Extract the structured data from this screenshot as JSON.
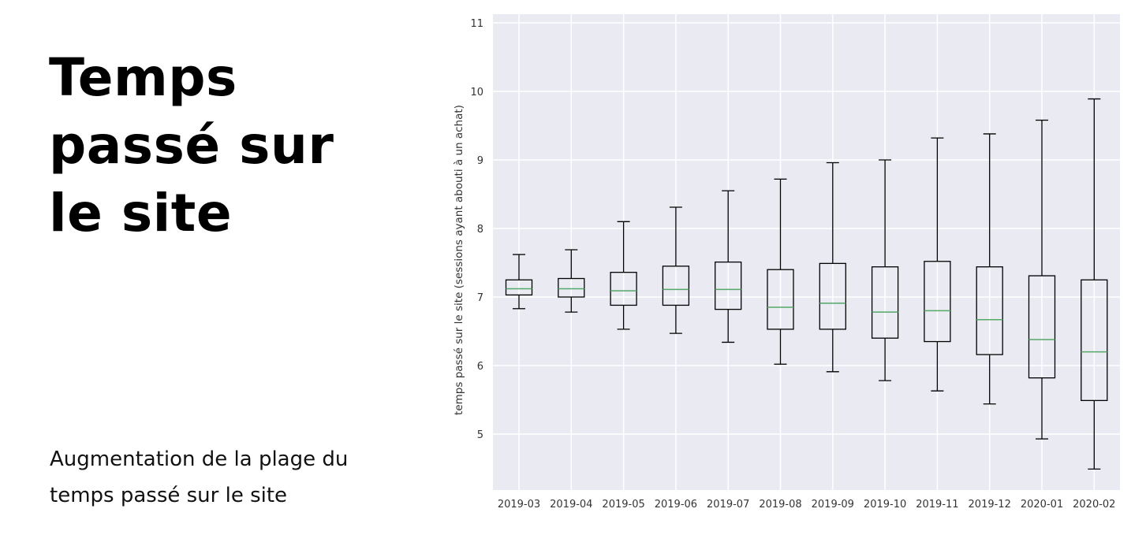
{
  "slide": {
    "title": "Temps passé sur le site",
    "subtitle": "Augmentation de la plage du temps passé sur le site"
  },
  "chart_data": {
    "type": "boxplot",
    "title": "",
    "xlabel": "",
    "ylabel": "temps passé sur le site (sessions ayant abouti à un achat)",
    "ylim": [
      4.2,
      11
    ],
    "yticks": [
      5,
      6,
      7,
      8,
      9,
      10,
      11
    ],
    "grid": true,
    "colors": {
      "plot_background": "#eaeaf2",
      "grid": "#ffffff",
      "box": "#000000",
      "median": "#55a868"
    },
    "categories": [
      "2019-03",
      "2019-04",
      "2019-05",
      "2019-06",
      "2019-07",
      "2019-08",
      "2019-09",
      "2019-10",
      "2019-11",
      "2019-12",
      "2020-01",
      "2020-02"
    ],
    "boxes": [
      {
        "whisker_low": 6.83,
        "q1": 7.03,
        "median": 7.12,
        "q3": 7.25,
        "whisker_high": 7.62
      },
      {
        "whisker_low": 6.78,
        "q1": 7.0,
        "median": 7.12,
        "q3": 7.27,
        "whisker_high": 7.69
      },
      {
        "whisker_low": 6.53,
        "q1": 6.88,
        "median": 7.09,
        "q3": 7.36,
        "whisker_high": 8.1
      },
      {
        "whisker_low": 6.47,
        "q1": 6.88,
        "median": 7.11,
        "q3": 7.45,
        "whisker_high": 8.31
      },
      {
        "whisker_low": 6.34,
        "q1": 6.82,
        "median": 7.11,
        "q3": 7.51,
        "whisker_high": 8.55
      },
      {
        "whisker_low": 6.02,
        "q1": 6.53,
        "median": 6.85,
        "q3": 7.4,
        "whisker_high": 8.72
      },
      {
        "whisker_low": 5.91,
        "q1": 6.53,
        "median": 6.91,
        "q3": 7.49,
        "whisker_high": 8.96
      },
      {
        "whisker_low": 5.78,
        "q1": 6.4,
        "median": 6.78,
        "q3": 7.44,
        "whisker_high": 9.0
      },
      {
        "whisker_low": 5.63,
        "q1": 6.35,
        "median": 6.8,
        "q3": 7.52,
        "whisker_high": 9.32
      },
      {
        "whisker_low": 5.44,
        "q1": 6.16,
        "median": 6.67,
        "q3": 7.44,
        "whisker_high": 9.38
      },
      {
        "whisker_low": 4.93,
        "q1": 5.82,
        "median": 6.38,
        "q3": 7.31,
        "whisker_high": 9.58
      },
      {
        "whisker_low": 4.49,
        "q1": 5.49,
        "median": 6.2,
        "q3": 7.25,
        "whisker_high": 9.89
      }
    ]
  }
}
